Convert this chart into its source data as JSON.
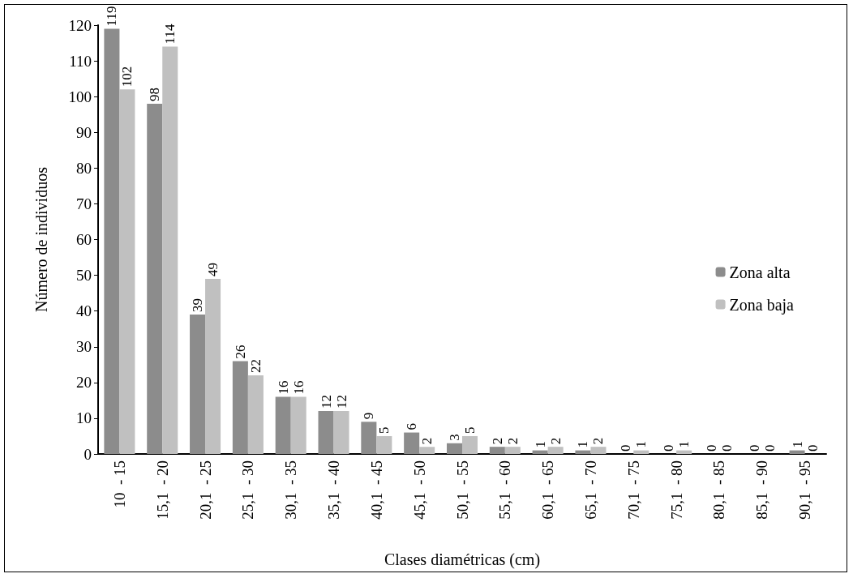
{
  "chart_data": {
    "type": "bar",
    "xlabel": "Clases diamétricas (cm)",
    "ylabel": "Número de individuos",
    "categories": [
      "10  - 15",
      "15,1  - 20",
      "20,1  - 25",
      "25,1  - 30",
      "30,1  - 35",
      "35,1  - 40",
      "40,1  - 45",
      "45,1  - 50",
      "50,1  - 55",
      "55,1  - 60",
      "60,1  - 65",
      "65,1  - 70",
      "70,1  - 75",
      "75,1  - 80",
      "80,1  - 85",
      "85,1  - 90",
      "90,1  - 95"
    ],
    "series": [
      {
        "name": "Zona alta",
        "color": "#8c8c8c",
        "values": [
          119,
          98,
          39,
          26,
          16,
          12,
          9,
          6,
          3,
          2,
          1,
          1,
          0,
          0,
          0,
          0,
          1
        ]
      },
      {
        "name": "Zona baja",
        "color": "#c0c0c0",
        "values": [
          102,
          114,
          49,
          22,
          16,
          12,
          5,
          2,
          5,
          2,
          2,
          2,
          1,
          1,
          0,
          0,
          0
        ]
      }
    ],
    "ylim": [
      0,
      120
    ],
    "yticks": [
      0,
      10,
      20,
      30,
      40,
      50,
      60,
      70,
      80,
      90,
      100,
      110,
      120
    ],
    "data_labels": true,
    "grid": false,
    "legend": "right"
  }
}
